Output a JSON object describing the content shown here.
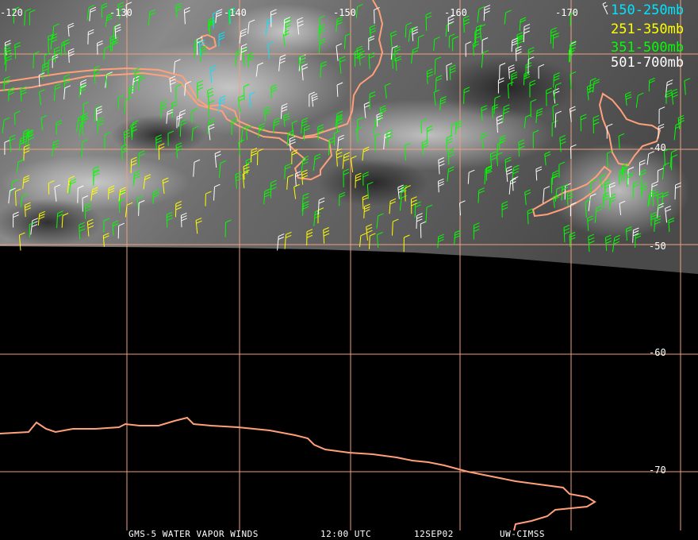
{
  "footer": {
    "satellite": "GMS-5 WATER VAPOR WINDS",
    "time": "12:00 UTC",
    "date": "12SEP02",
    "source": "UW-CIMSS"
  },
  "legend": [
    {
      "label": "150-250mb",
      "color": "#00e5ff"
    },
    {
      "label": "251-350mb",
      "color": "#ffff00"
    },
    {
      "label": "351-500mb",
      "color": "#00ff00"
    },
    {
      "label": "501-700mb",
      "color": "#ffffff"
    }
  ],
  "grid": {
    "line_color": "#f0a080",
    "coast_color": "#ffa07a",
    "longitude_labels": [
      "-120",
      "-130",
      "-140",
      "-150",
      "-160",
      "-170"
    ],
    "latitude_labels": [
      "-40",
      "-50",
      "-60",
      "-70"
    ]
  }
}
